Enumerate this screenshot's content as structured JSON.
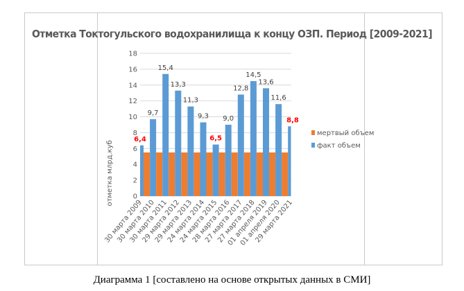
{
  "caption": "Диаграмма 1 [составлено на основе открытых данных в СМИ]",
  "chart_data": {
    "type": "bar",
    "title": "Отметка Токтогульского водохранилища к концу ОЗП. Период  [2009-2021]",
    "xlabel": "",
    "ylabel": "отметка млрд.куб",
    "ylim": [
      0,
      18
    ],
    "yticks": [
      "0",
      "2",
      "4",
      "6",
      "8",
      "10",
      "12",
      "14",
      "16",
      "18"
    ],
    "grid": true,
    "legend_position": "right",
    "categories": [
      "30 марта 2009",
      "30 марта 2010",
      "30 марта 2011",
      "29 марта 2012",
      "29 марта 2013",
      "24 марта 2014",
      "24 марта 2015",
      "28 марта 2016",
      "27 марта 2017",
      "27 марта 2018",
      "01 апреля 2019",
      "01 апреля 2020",
      "29 марта 2021"
    ],
    "series": [
      {
        "name": "мертвый объем",
        "color": "#ed7d31",
        "values": [
          5.5,
          5.5,
          5.5,
          5.5,
          5.5,
          5.5,
          5.5,
          5.5,
          5.5,
          5.5,
          5.5,
          5.5,
          5.5
        ]
      },
      {
        "name": "факт объем",
        "color": "#5b9bd5",
        "values": [
          6.4,
          9.7,
          15.4,
          13.3,
          11.3,
          9.3,
          6.5,
          9.0,
          12.8,
          14.5,
          13.6,
          11.6,
          8.8
        ],
        "labels": [
          "6,4",
          "9,7",
          "15,4",
          "13,3",
          "11,3",
          "9,3",
          "6,5",
          "9,0",
          "12,8",
          "14,5",
          "13,6",
          "11,6",
          "8,8"
        ],
        "highlighted": [
          0,
          6,
          12
        ],
        "highlight_color": "#ff0000"
      }
    ]
  }
}
